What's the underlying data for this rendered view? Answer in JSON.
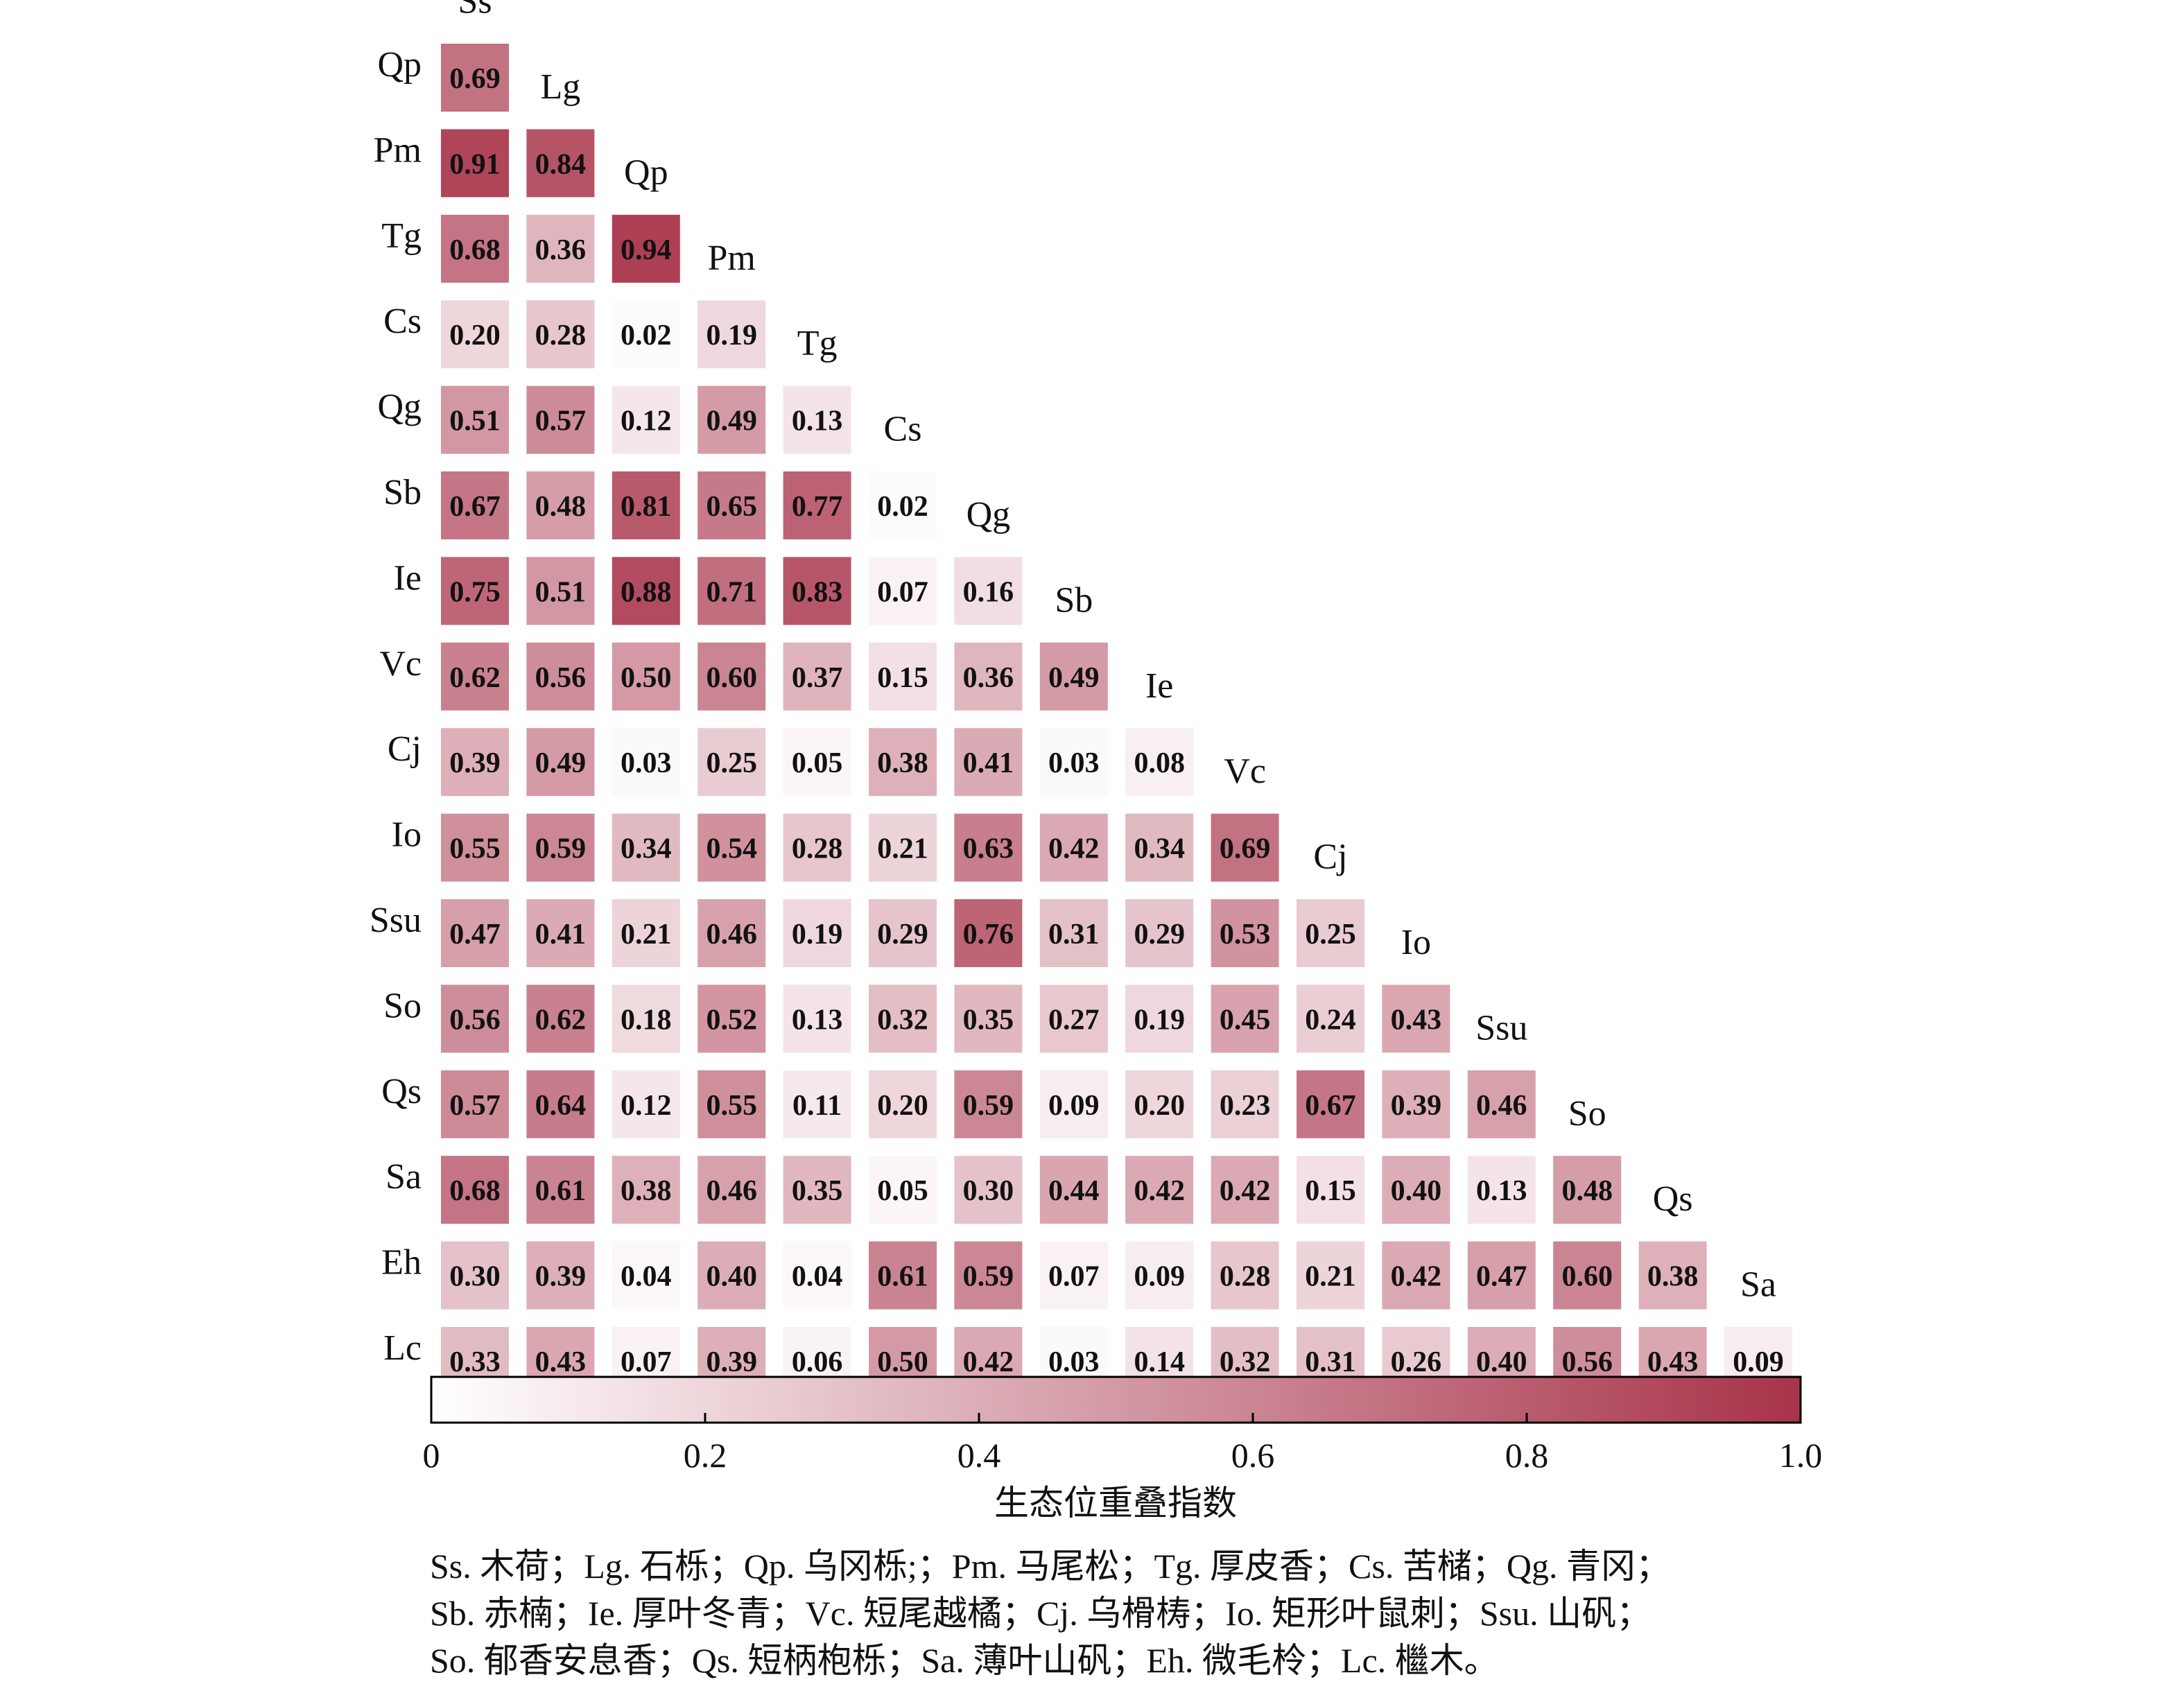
{
  "chart_data": {
    "type": "heatmap",
    "variant": "lower-triangle",
    "species": [
      "Ss",
      "Lg",
      "Qp",
      "Pm",
      "Tg",
      "Cs",
      "Qg",
      "Sb",
      "Ie",
      "Vc",
      "Cj",
      "Io",
      "Ssu",
      "So",
      "Qs",
      "Sa",
      "Eh",
      "Lc"
    ],
    "column_labels": [
      "Ss",
      "Lg",
      "Qp",
      "Pm",
      "Tg",
      "Cs",
      "Qg",
      "Sb",
      "Ie",
      "Vc",
      "Cj",
      "Io",
      "Ssu",
      "So",
      "Qs",
      "Sa"
    ],
    "row_labels": [
      "Qp",
      "Pm",
      "Tg",
      "Cs",
      "Qg",
      "Sb",
      "Ie",
      "Vc",
      "Cj",
      "Io",
      "Ssu",
      "So",
      "Qs",
      "Sa",
      "Eh",
      "Lc"
    ],
    "values": [
      [
        0.69
      ],
      [
        0.91,
        0.84
      ],
      [
        0.68,
        0.36,
        0.94
      ],
      [
        0.2,
        0.28,
        0.02,
        0.19
      ],
      [
        0.51,
        0.57,
        0.12,
        0.49,
        0.13
      ],
      [
        0.67,
        0.48,
        0.81,
        0.65,
        0.77,
        0.02
      ],
      [
        0.75,
        0.51,
        0.88,
        0.71,
        0.83,
        0.07,
        0.16
      ],
      [
        0.62,
        0.56,
        0.5,
        0.6,
        0.37,
        0.15,
        0.36,
        0.49
      ],
      [
        0.39,
        0.49,
        0.03,
        0.25,
        0.05,
        0.38,
        0.41,
        0.03,
        0.08
      ],
      [
        0.55,
        0.59,
        0.34,
        0.54,
        0.28,
        0.21,
        0.63,
        0.42,
        0.34,
        0.69
      ],
      [
        0.47,
        0.41,
        0.21,
        0.46,
        0.19,
        0.29,
        0.76,
        0.31,
        0.29,
        0.53,
        0.25
      ],
      [
        0.56,
        0.62,
        0.18,
        0.52,
        0.13,
        0.32,
        0.35,
        0.27,
        0.19,
        0.45,
        0.24,
        0.43
      ],
      [
        0.57,
        0.64,
        0.12,
        0.55,
        0.11,
        0.2,
        0.59,
        0.09,
        0.2,
        0.23,
        0.67,
        0.39,
        0.46
      ],
      [
        0.68,
        0.61,
        0.38,
        0.46,
        0.35,
        0.05,
        0.3,
        0.44,
        0.42,
        0.42,
        0.15,
        0.4,
        0.13,
        0.48
      ],
      [
        0.3,
        0.39,
        0.04,
        0.4,
        0.04,
        0.61,
        0.59,
        0.07,
        0.09,
        0.28,
        0.21,
        0.42,
        0.47,
        0.6,
        0.38
      ],
      [
        0.33,
        0.43,
        0.07,
        0.39,
        0.06,
        0.5,
        0.42,
        0.03,
        0.14,
        0.32,
        0.31,
        0.26,
        0.4,
        0.56,
        0.43,
        0.09
      ]
    ],
    "colorbar": {
      "label": "生态位重叠指数",
      "range": [
        0,
        1.0
      ],
      "ticks": [
        "0",
        "0.2",
        "0.4",
        "0.6",
        "0.8",
        "1.0"
      ],
      "color_low": "#ffffff",
      "color_high": "#a8334a"
    },
    "colors": {
      "low": "#ffffff",
      "high": "#a8334a",
      "text": "#111111"
    }
  },
  "legend_note": [
    "Ss. 木荷；Lg. 石栎；Qp. 乌冈栎;；Pm. 马尾松；Tg. 厚皮香；Cs. 苦槠；Qg. 青冈；",
    "Sb. 赤楠；Ie. 厚叶冬青；Vc. 短尾越橘；Cj. 乌榾梼；Io. 矩形叶鼠刺；Ssu. 山矾；",
    "So. 郁香安息香；Qs. 短柄枹栎；Sa. 薄叶山矾；Eh. 微毛柃；Lc. 檵木。"
  ]
}
